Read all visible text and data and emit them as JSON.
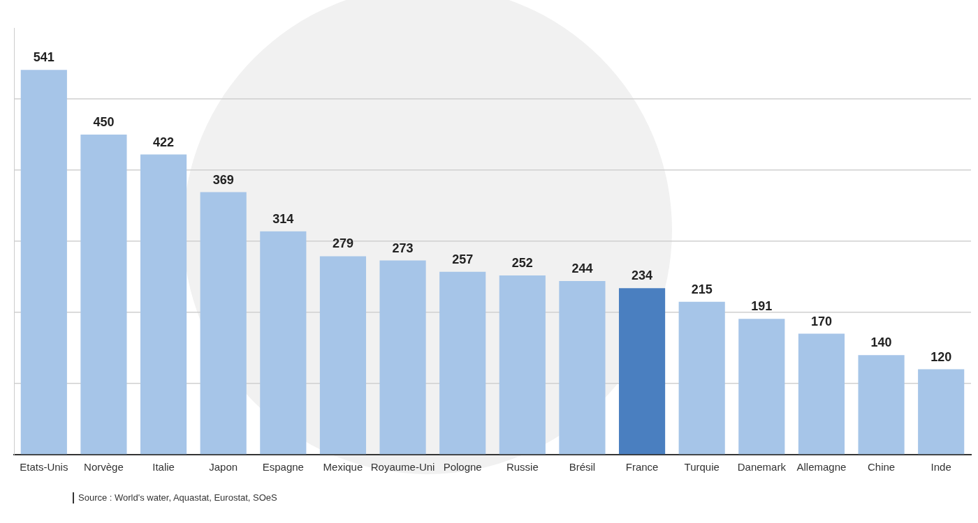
{
  "chart_data": {
    "type": "bar",
    "categories": [
      "Etats-Unis",
      "Norvège",
      "Italie",
      "Japon",
      "Espagne",
      "Mexique",
      "Royaume-Uni",
      "Pologne",
      "Russie",
      "Brésil",
      "France",
      "Turquie",
      "Danemark",
      "Allemagne",
      "Chine",
      "Inde"
    ],
    "values": [
      541,
      450,
      422,
      369,
      314,
      279,
      273,
      257,
      252,
      244,
      234,
      215,
      191,
      170,
      140,
      120
    ],
    "colors": [
      "#a6c5e8",
      "#a6c5e8",
      "#a6c5e8",
      "#a6c5e8",
      "#a6c5e8",
      "#a6c5e8",
      "#a6c5e8",
      "#a6c5e8",
      "#a6c5e8",
      "#a6c5e8",
      "#4a7fc0",
      "#a6c5e8",
      "#a6c5e8",
      "#a6c5e8",
      "#a6c5e8",
      "#a6c5e8"
    ],
    "ylim": [
      0,
      600
    ],
    "yticks": [
      {
        "value": 0,
        "label": null
      },
      {
        "value": 100,
        "label": null
      },
      {
        "value": 200,
        "label": null
      },
      {
        "value": 300,
        "label": null
      },
      {
        "value": 400,
        "label": null
      },
      {
        "value": 500,
        "label": null
      }
    ],
    "grid": "y",
    "tick_labels": "x",
    "data_labels": true,
    "legend": false,
    "annotations": [
      "Source : World's water, Aquastat, Eurostat, SOeS"
    ]
  }
}
